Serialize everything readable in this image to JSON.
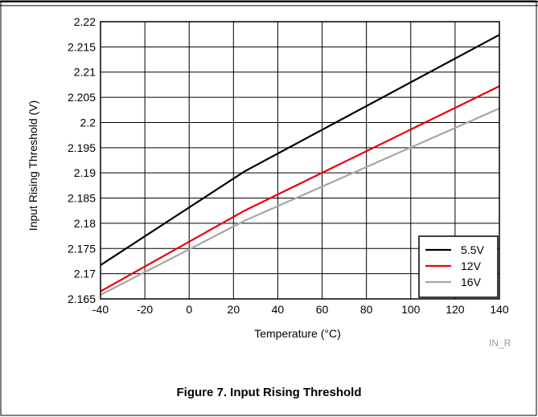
{
  "chart_data": {
    "type": "line",
    "title": "",
    "xlabel": "Temperature (°C)",
    "ylabel": "Input Rising Threshold (V)",
    "xlim": [
      -40,
      140
    ],
    "ylim": [
      2.165,
      2.22
    ],
    "x_ticks": [
      "-40",
      "-20",
      "0",
      "20",
      "40",
      "60",
      "80",
      "100",
      "120",
      "140"
    ],
    "y_ticks": [
      "2.22",
      "2.215",
      "2.21",
      "2.205",
      "2.2",
      "2.195",
      "2.19",
      "2.185",
      "2.18",
      "2.175",
      "2.17",
      "2.165"
    ],
    "grid": true,
    "legend_position": "bottom-right",
    "series": [
      {
        "name": "5.5V",
        "color": "#000000",
        "x": [
          -40,
          25,
          140
        ],
        "y": [
          2.1717,
          2.1903,
          2.2174
        ]
      },
      {
        "name": "12V",
        "color": "#e8000b",
        "x": [
          -40,
          25,
          140
        ],
        "y": [
          2.1665,
          2.1825,
          2.2072
        ]
      },
      {
        "name": "16V",
        "color": "#a6a6a6",
        "x": [
          -40,
          25,
          140
        ],
        "y": [
          2.1658,
          2.1805,
          2.2028
        ]
      }
    ]
  },
  "figure_id": "IN_R",
  "caption": "Figure 7. Input Rising Threshold"
}
